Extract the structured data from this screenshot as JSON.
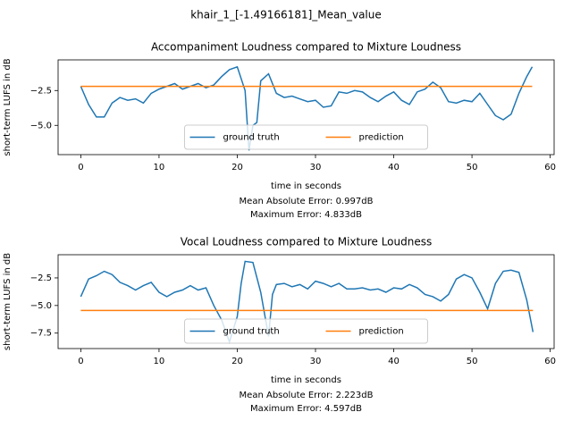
{
  "title": "khair_1_[-1.49166181]_Mean_value",
  "chart_data": [
    {
      "type": "line",
      "title": "Accompaniment Loudness compared to Mixture Loudness",
      "x_label": "time in seconds",
      "y_label": "short-term LUFS in dB",
      "annotations": [
        "Mean Absolute Error: 0.997dB",
        "Maximum Error: 4.833dB"
      ],
      "x": [
        0,
        1,
        2,
        3,
        4,
        5,
        6,
        7,
        8,
        9,
        10,
        11,
        12,
        13,
        14,
        15,
        16,
        17,
        18,
        19,
        20,
        21,
        21.5,
        22,
        22.5,
        23,
        24,
        25,
        26,
        27,
        28,
        29,
        30,
        31,
        32,
        33,
        34,
        35,
        36,
        37,
        38,
        39,
        40,
        41,
        42,
        43,
        44,
        45,
        46,
        47,
        48,
        49,
        50,
        51,
        52,
        53,
        54,
        55,
        56,
        57,
        57.7
      ],
      "series": [
        {
          "name": "ground truth",
          "color": "#1f77b4",
          "values": [
            -2.2,
            -3.5,
            -4.4,
            -4.4,
            -3.4,
            -3.0,
            -3.2,
            -3.1,
            -3.4,
            -2.7,
            -2.4,
            -2.2,
            -2.0,
            -2.4,
            -2.2,
            -2.0,
            -2.3,
            -2.1,
            -1.5,
            -1.0,
            -0.8,
            -2.5,
            -6.8,
            -5.0,
            -4.8,
            -1.8,
            -1.3,
            -2.7,
            -3.0,
            -2.9,
            -3.1,
            -3.3,
            -3.2,
            -3.7,
            -3.6,
            -2.6,
            -2.7,
            -2.5,
            -2.6,
            -3.0,
            -3.3,
            -2.9,
            -2.6,
            -3.2,
            -3.5,
            -2.6,
            -2.4,
            -1.9,
            -2.3,
            -3.3,
            -3.4,
            -3.2,
            -3.3,
            -2.7,
            -3.5,
            -4.3,
            -4.6,
            -4.2,
            -2.7,
            -1.5,
            -0.8
          ]
        },
        {
          "name": "prediction",
          "color": "#ff7f0e",
          "values": [
            -2.2,
            -2.2,
            -2.2,
            -2.2,
            -2.2,
            -2.2,
            -2.2,
            -2.2,
            -2.2,
            -2.2,
            -2.2,
            -2.2,
            -2.2,
            -2.2,
            -2.2,
            -2.2,
            -2.2,
            -2.2,
            -2.2,
            -2.2,
            -2.2,
            -2.2,
            -2.2,
            -2.2,
            -2.2,
            -2.2,
            -2.2,
            -2.2,
            -2.2,
            -2.2,
            -2.2,
            -2.2,
            -2.2,
            -2.2,
            -2.2,
            -2.2,
            -2.2,
            -2.2,
            -2.2,
            -2.2,
            -2.2,
            -2.2,
            -2.2,
            -2.2,
            -2.2,
            -2.2,
            -2.2,
            -2.2,
            -2.2,
            -2.2,
            -2.2,
            -2.2,
            -2.2,
            -2.2,
            -2.2,
            -2.2,
            -2.2,
            -2.2,
            -2.2,
            -2.2,
            -2.2
          ]
        }
      ],
      "xlim": [
        -2.9,
        60.5
      ],
      "ylim": [
        -7.1,
        -0.3
      ],
      "xticks": [
        0,
        10,
        20,
        30,
        40,
        50,
        60
      ],
      "yticks": [
        {
          "value": -2.5,
          "label": "−2.5"
        },
        {
          "value": -5,
          "label": "−5.0"
        }
      ],
      "legend": "lower center"
    },
    {
      "type": "line",
      "title": "Vocal Loudness compared to Mixture Loudness",
      "x_label": "time in seconds",
      "y_label": "short-term LUFS in dB",
      "annotations": [
        "Mean Absolute Error: 2.223dB",
        "Maximum Error: 4.597dB"
      ],
      "x": [
        0,
        1,
        2,
        3,
        4,
        5,
        6,
        7,
        8,
        9,
        10,
        11,
        12,
        13,
        14,
        15,
        16,
        17,
        18,
        19,
        20,
        20.5,
        21,
        22,
        23,
        24,
        24.5,
        25,
        26,
        27,
        28,
        29,
        30,
        31,
        32,
        33,
        34,
        35,
        36,
        37,
        38,
        39,
        40,
        41,
        42,
        43,
        44,
        45,
        46,
        47,
        48,
        49,
        50,
        51,
        52,
        53,
        54,
        55,
        56,
        57,
        57.8
      ],
      "series": [
        {
          "name": "ground truth",
          "color": "#1f77b4",
          "values": [
            -4.2,
            -2.6,
            -2.3,
            -1.9,
            -2.2,
            -2.9,
            -3.2,
            -3.6,
            -3.2,
            -2.9,
            -3.8,
            -4.2,
            -3.8,
            -3.6,
            -3.2,
            -3.6,
            -3.4,
            -5.0,
            -6.3,
            -8.3,
            -6.0,
            -3.0,
            -1.0,
            -1.1,
            -3.8,
            -7.8,
            -4.0,
            -3.1,
            -3.0,
            -3.3,
            -3.1,
            -3.5,
            -2.8,
            -3.0,
            -3.3,
            -3.0,
            -3.5,
            -3.5,
            -3.4,
            -3.6,
            -3.5,
            -3.8,
            -3.4,
            -3.5,
            -3.1,
            -3.4,
            -4.0,
            -4.2,
            -4.6,
            -4.0,
            -2.6,
            -2.2,
            -2.5,
            -3.8,
            -5.3,
            -3.0,
            -1.9,
            -1.8,
            -2.0,
            -4.5,
            -7.4
          ]
        },
        {
          "name": "prediction",
          "color": "#ff7f0e",
          "values": [
            -5.45,
            -5.45,
            -5.45,
            -5.45,
            -5.45,
            -5.45,
            -5.45,
            -5.45,
            -5.45,
            -5.45,
            -5.45,
            -5.45,
            -5.45,
            -5.45,
            -5.45,
            -5.45,
            -5.45,
            -5.45,
            -5.45,
            -5.45,
            -5.45,
            -5.45,
            -5.45,
            -5.45,
            -5.45,
            -5.45,
            -5.45,
            -5.45,
            -5.45,
            -5.45,
            -5.45,
            -5.45,
            -5.45,
            -5.45,
            -5.45,
            -5.45,
            -5.45,
            -5.45,
            -5.45,
            -5.45,
            -5.45,
            -5.45,
            -5.45,
            -5.45,
            -5.45,
            -5.45,
            -5.45,
            -5.45,
            -5.45,
            -5.45,
            -5.45,
            -5.45,
            -5.45,
            -5.45,
            -5.45,
            -5.45,
            -5.45,
            -5.45,
            -5.45,
            -5.45,
            -5.45
          ]
        }
      ],
      "xlim": [
        -2.9,
        60.5
      ],
      "ylim": [
        -8.9,
        -0.4
      ],
      "xticks": [
        0,
        10,
        20,
        30,
        40,
        50,
        60
      ],
      "yticks": [
        {
          "value": -2.5,
          "label": "−2.5"
        },
        {
          "value": -5,
          "label": "−5.0"
        },
        {
          "value": -7.5,
          "label": "−7.5"
        }
      ],
      "legend": "lower center"
    }
  ]
}
